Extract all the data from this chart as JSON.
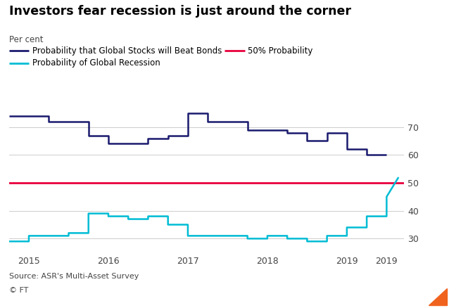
{
  "title": "Investors fear recession is just around the corner",
  "ylabel": "Per cent",
  "source": "Source: ASR's Multi-Asset Survey",
  "copyright": "© FT",
  "fifty_pct_label": "50% Probability",
  "legend_stocks": "Probability that Global Stocks will Beat Bonds",
  "legend_recession": "Probability of Global Recession",
  "stocks_color": "#1a1a6e",
  "recession_color": "#00bcd4",
  "fifty_color": "#e8003d",
  "background_color": "#ffffff",
  "ylim": [
    25,
    78
  ],
  "yticks": [
    30,
    40,
    50,
    60,
    70
  ],
  "stocks_x": [
    2014.75,
    2015.0,
    2015.25,
    2015.25,
    2015.5,
    2015.5,
    2015.75,
    2015.75,
    2016.0,
    2016.0,
    2016.25,
    2016.25,
    2016.5,
    2016.5,
    2016.75,
    2016.75,
    2017.0,
    2017.0,
    2017.25,
    2017.25,
    2017.5,
    2017.5,
    2017.75,
    2017.75,
    2018.0,
    2018.0,
    2018.25,
    2018.25,
    2018.5,
    2018.5,
    2018.75,
    2018.75,
    2019.0,
    2019.0,
    2019.25,
    2019.25,
    2019.5
  ],
  "stocks_y": [
    74,
    74,
    74,
    72,
    72,
    72,
    72,
    67,
    67,
    64,
    64,
    64,
    64,
    66,
    66,
    67,
    67,
    75,
    75,
    72,
    72,
    72,
    72,
    69,
    69,
    69,
    69,
    68,
    68,
    65,
    65,
    68,
    68,
    62,
    62,
    60,
    60
  ],
  "recession_x": [
    2014.75,
    2015.0,
    2015.0,
    2015.25,
    2015.25,
    2015.5,
    2015.5,
    2015.75,
    2015.75,
    2016.0,
    2016.0,
    2016.25,
    2016.25,
    2016.5,
    2016.5,
    2016.75,
    2016.75,
    2017.0,
    2017.0,
    2017.25,
    2017.25,
    2017.5,
    2017.5,
    2017.75,
    2017.75,
    2018.0,
    2018.0,
    2018.25,
    2018.25,
    2018.5,
    2018.5,
    2018.75,
    2018.75,
    2019.0,
    2019.0,
    2019.25,
    2019.25,
    2019.5,
    2019.5,
    2019.65
  ],
  "recession_y": [
    29,
    29,
    31,
    31,
    31,
    31,
    32,
    32,
    39,
    39,
    38,
    38,
    37,
    37,
    38,
    38,
    35,
    35,
    31,
    31,
    31,
    31,
    31,
    31,
    30,
    30,
    31,
    31,
    30,
    30,
    29,
    29,
    31,
    31,
    34,
    34,
    38,
    38,
    45,
    52
  ],
  "xlim": [
    2014.75,
    2019.72
  ],
  "xtick_positions": [
    2015.0,
    2016.0,
    2017.0,
    2018.0,
    2019.0,
    2019.5
  ],
  "xtick_labels": [
    "2015",
    "2016",
    "2017",
    "2018",
    "2019",
    "2019"
  ]
}
